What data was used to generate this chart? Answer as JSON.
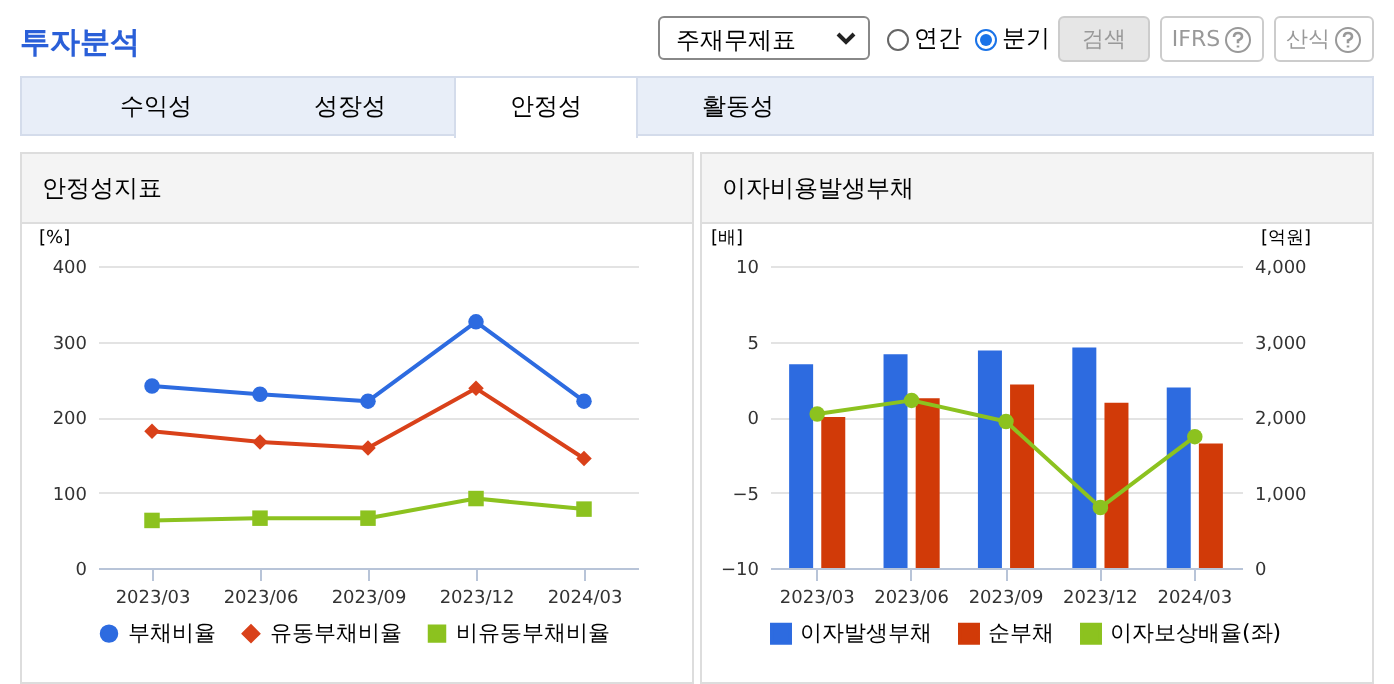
{
  "chart_data": [
    {
      "type": "other",
      "title": "투자분석",
      "annotations": [
        "주재무제표",
        "연간",
        "분기",
        "검색",
        "IFRS",
        "산식",
        "수익성",
        "성장성",
        "안정성",
        "활동성"
      ]
    },
    {
      "type": "line",
      "title": "안정성지표",
      "ylabel": "[%]",
      "categories": [
        "2023/03",
        "2023/06",
        "2023/09",
        "2023/12",
        "2024/03"
      ],
      "series": [
        {
          "name": "부채비율",
          "color": "#2d6be0",
          "marker": "circle",
          "values": [
            241,
            230,
            221,
            326,
            221
          ]
        },
        {
          "name": "유동부채비율",
          "color": "#d9411a",
          "marker": "diamond",
          "values": [
            181,
            167,
            159,
            238,
            145
          ]
        },
        {
          "name": "비유동부채비율",
          "color": "#8cc21f",
          "marker": "square",
          "values": [
            63,
            66,
            66,
            92,
            78
          ]
        }
      ],
      "ylim": [
        0,
        400
      ],
      "yticks": [
        0,
        100,
        200,
        300,
        400
      ],
      "grid": "y",
      "legend": "bottom"
    },
    {
      "type": "bar",
      "title": "이자비용발생부채",
      "ylabel": "[배]",
      "y2label": "[억원]",
      "categories": [
        "2023/03",
        "2023/06",
        "2023/09",
        "2023/12",
        "2024/03"
      ],
      "series": [
        {
          "name": "이자발생부채",
          "color": "#2d6be0",
          "axis": "y2",
          "values": [
            2700,
            2830,
            2880,
            2920,
            2390
          ]
        },
        {
          "name": "순부채",
          "color": "#d13a08",
          "axis": "y2",
          "values": [
            2000,
            2250,
            2430,
            2190,
            1650
          ]
        },
        {
          "name": "이자보상배율(좌)",
          "type": "line",
          "color": "#8cc21f",
          "marker": "circle",
          "axis": "y",
          "values": [
            0.2,
            1.1,
            -0.3,
            -6.0,
            -1.3
          ]
        }
      ],
      "ylim": [
        -10,
        10
      ],
      "yticks": [
        -10,
        -5,
        0,
        5,
        10
      ],
      "y2lim": [
        0,
        4000
      ],
      "y2ticks": [
        0,
        {
          "value": 1000,
          "label": "1,000"
        },
        {
          "value": 2000,
          "label": "2,000"
        },
        {
          "value": 3000,
          "label": "3,000"
        },
        {
          "value": 4000,
          "label": "4,000"
        }
      ],
      "grid": "y",
      "legend": "bottom"
    }
  ]
}
